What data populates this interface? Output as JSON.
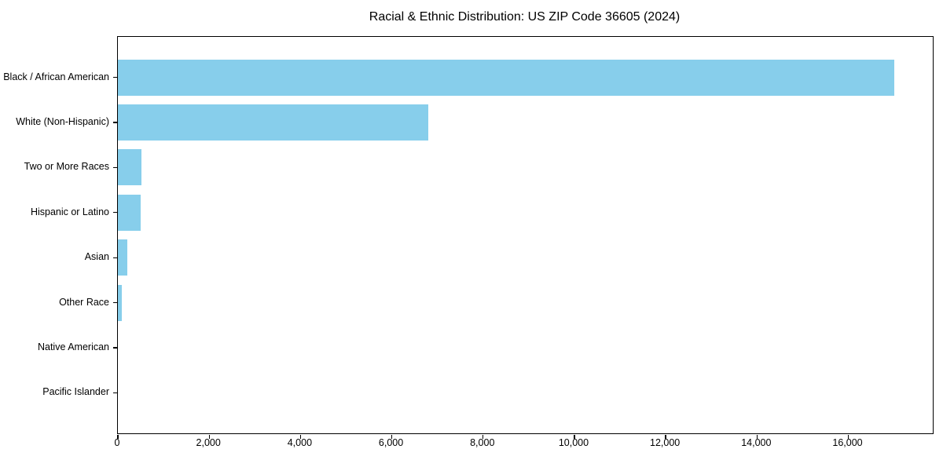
{
  "chart_data": {
    "type": "bar",
    "orientation": "horizontal",
    "title": "Racial & Ethnic Distribution: US ZIP Code 36605 (2024)",
    "categories": [
      "Black / African American",
      "White (Non-Hispanic)",
      "Two or More Races",
      "Hispanic or Latino",
      "Asian",
      "Other Race",
      "Native American",
      "Pacific Islander"
    ],
    "values": [
      17000,
      6800,
      520,
      500,
      200,
      80,
      0,
      0
    ],
    "xlabel": "",
    "ylabel": "",
    "xlim": [
      0,
      17850
    ],
    "x_ticks": [
      0,
      2000,
      4000,
      6000,
      8000,
      10000,
      12000,
      14000,
      16000
    ],
    "x_tick_labels": [
      "0",
      "2,000",
      "4,000",
      "6,000",
      "8,000",
      "10,000",
      "12,000",
      "14,000",
      "16,000"
    ],
    "grid": false,
    "legend": false,
    "bar_color": "#87CEEB",
    "background_color": "#ffffff",
    "text_color": "#000000"
  }
}
